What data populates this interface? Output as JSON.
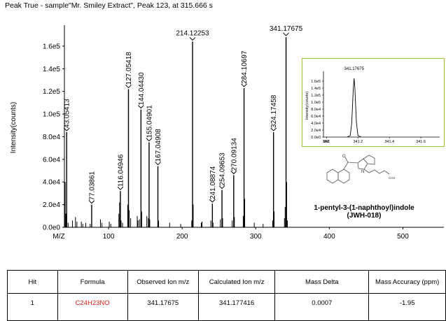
{
  "title": "Peak True - sample\"Mr. Smiley Extract\", Peak 123, at 315.666 s",
  "chart_data": [
    {
      "type": "line",
      "style": "stick spectrum",
      "xlabel": "M/Z",
      "ylabel": "Intensity(counts)",
      "xlim": [
        40,
        550
      ],
      "ylim": [
        0,
        176000
      ],
      "x_ticks": [
        100,
        200,
        300,
        400,
        500
      ],
      "y_ticks": [
        {
          "value": 0,
          "label": "0.0e0"
        },
        {
          "value": 20000,
          "label": "2.0e4"
        },
        {
          "value": 40000,
          "label": "4.0e4"
        },
        {
          "value": 60000,
          "label": "6.0e4"
        },
        {
          "value": 80000,
          "label": "8.0e4"
        },
        {
          "value": 100000,
          "label": "1.0e5"
        },
        {
          "value": 120000,
          "label": "1.2e5"
        },
        {
          "value": 140000,
          "label": "1.4e5"
        },
        {
          "value": 160000,
          "label": "1.6e5"
        }
      ],
      "labeled_peaks": [
        {
          "mz": 43.05413,
          "intensity": 84000,
          "label": "43.05413"
        },
        {
          "mz": 77.03861,
          "intensity": 20000,
          "label": "77.03861"
        },
        {
          "mz": 116.04946,
          "intensity": 32000,
          "label": "116.04946"
        },
        {
          "mz": 127.05418,
          "intensity": 122000,
          "label": "127.05418"
        },
        {
          "mz": 144.0443,
          "intensity": 104000,
          "label": "144.04430"
        },
        {
          "mz": 155.04901,
          "intensity": 75000,
          "label": "155.04901"
        },
        {
          "mz": 167.04908,
          "intensity": 54000,
          "label": "167.04908"
        },
        {
          "mz": 214.12253,
          "intensity": 164000,
          "label": "214.12253"
        },
        {
          "mz": 241.08874,
          "intensity": 21000,
          "label": "241.08874"
        },
        {
          "mz": 254.09653,
          "intensity": 33000,
          "label": "254.09653"
        },
        {
          "mz": 270.09134,
          "intensity": 46000,
          "label": "270.09134"
        },
        {
          "mz": 284.10697,
          "intensity": 123000,
          "label": "284.10697"
        },
        {
          "mz": 324.17458,
          "intensity": 84000,
          "label": "324.17458"
        },
        {
          "mz": 341.17675,
          "intensity": 168000,
          "label": "341.17675"
        }
      ],
      "minor_peaks": [
        {
          "mz": 41,
          "intensity": 40000
        },
        {
          "mz": 42,
          "intensity": 12000
        },
        {
          "mz": 45,
          "intensity": 4000
        },
        {
          "mz": 51,
          "intensity": 6000
        },
        {
          "mz": 55,
          "intensity": 9000
        },
        {
          "mz": 57,
          "intensity": 5000
        },
        {
          "mz": 63,
          "intensity": 5000
        },
        {
          "mz": 65,
          "intensity": 3000
        },
        {
          "mz": 69,
          "intensity": 4000
        },
        {
          "mz": 75,
          "intensity": 3000
        },
        {
          "mz": 89,
          "intensity": 7000
        },
        {
          "mz": 91,
          "intensity": 4000
        },
        {
          "mz": 101,
          "intensity": 5000
        },
        {
          "mz": 103,
          "intensity": 3000
        },
        {
          "mz": 114,
          "intensity": 12000
        },
        {
          "mz": 115,
          "intensity": 22000
        },
        {
          "mz": 117,
          "intensity": 6000
        },
        {
          "mz": 119,
          "intensity": 4000
        },
        {
          "mz": 126,
          "intensity": 20000
        },
        {
          "mz": 128,
          "intensity": 15000
        },
        {
          "mz": 130,
          "intensity": 8000
        },
        {
          "mz": 139,
          "intensity": 10000
        },
        {
          "mz": 140,
          "intensity": 6000
        },
        {
          "mz": 142,
          "intensity": 7000
        },
        {
          "mz": 145,
          "intensity": 14000
        },
        {
          "mz": 152,
          "intensity": 10000
        },
        {
          "mz": 154,
          "intensity": 8000
        },
        {
          "mz": 156,
          "intensity": 7000
        },
        {
          "mz": 168,
          "intensity": 6000
        },
        {
          "mz": 183,
          "intensity": 4000
        },
        {
          "mz": 198,
          "intensity": 3000
        },
        {
          "mz": 213,
          "intensity": 6000
        },
        {
          "mz": 215,
          "intensity": 20000
        },
        {
          "mz": 226,
          "intensity": 4000
        },
        {
          "mz": 227,
          "intensity": 5000
        },
        {
          "mz": 239,
          "intensity": 6000
        },
        {
          "mz": 242,
          "intensity": 4000
        },
        {
          "mz": 252,
          "intensity": 7000
        },
        {
          "mz": 255,
          "intensity": 8000
        },
        {
          "mz": 268,
          "intensity": 6000
        },
        {
          "mz": 271,
          "intensity": 9000
        },
        {
          "mz": 283,
          "intensity": 10000
        },
        {
          "mz": 285,
          "intensity": 25000
        },
        {
          "mz": 298,
          "intensity": 4000
        },
        {
          "mz": 310,
          "intensity": 3000
        },
        {
          "mz": 323,
          "intensity": 6000
        },
        {
          "mz": 325,
          "intensity": 14000
        },
        {
          "mz": 339,
          "intensity": 8000
        },
        {
          "mz": 340,
          "intensity": 18000
        },
        {
          "mz": 342,
          "intensity": 40000
        },
        {
          "mz": 343,
          "intensity": 6000
        }
      ]
    },
    {
      "type": "line",
      "style": "profile peak",
      "xlabel": "M/Z",
      "ylabel": "Intensity(counts)",
      "title": "341.17675",
      "xlim": [
        340.98,
        341.72
      ],
      "ylim": [
        0,
        180000
      ],
      "x_ticks": [
        341,
        341.2,
        341.4,
        341.6
      ],
      "x_tick_labels": [
        "341",
        "341.2",
        "341.4",
        "341.6"
      ],
      "y_ticks": [
        {
          "value": 0,
          "label": "0.0e0"
        },
        {
          "value": 20000,
          "label": "2.0e4"
        },
        {
          "value": 40000,
          "label": "4.0e4"
        },
        {
          "value": 60000,
          "label": "6.0e4"
        },
        {
          "value": 80000,
          "label": "8.0e4"
        },
        {
          "value": 100000,
          "label": "1.0e5"
        },
        {
          "value": 120000,
          "label": "1.2e5"
        },
        {
          "value": 140000,
          "label": "1.4e5"
        },
        {
          "value": 160000,
          "label": "1.6e5"
        }
      ],
      "x": [
        341.13,
        341.15,
        341.16,
        341.17,
        341.175,
        341.18,
        341.19,
        341.2,
        341.22
      ],
      "y": [
        0,
        4000,
        40000,
        140000,
        168000,
        140000,
        40000,
        4000,
        0
      ]
    }
  ],
  "compound": {
    "name_line1": "1-pentyl-3-(1-naphthoyl)indole",
    "name_line2": "(JWH-018)",
    "structure_labels": {
      "oxygen": "O",
      "nitrogen": "N",
      "methyl": "CH3"
    }
  },
  "table": {
    "headers": [
      "Hit",
      "Formula",
      "Observed Ion m/z",
      "Calculated Ion m/z",
      "Mass Delta",
      "Mass Accuracy (ppm)"
    ],
    "rows": [
      {
        "hit": "1",
        "formula": "C24H23NO",
        "observed": "341.17675",
        "calculated": "341.177416",
        "delta": "0.0007",
        "accuracy": "-1.95"
      }
    ]
  },
  "colors": {
    "spectrum": "#000000",
    "inset_border": "#9bc33a",
    "formula": "#e01919"
  }
}
